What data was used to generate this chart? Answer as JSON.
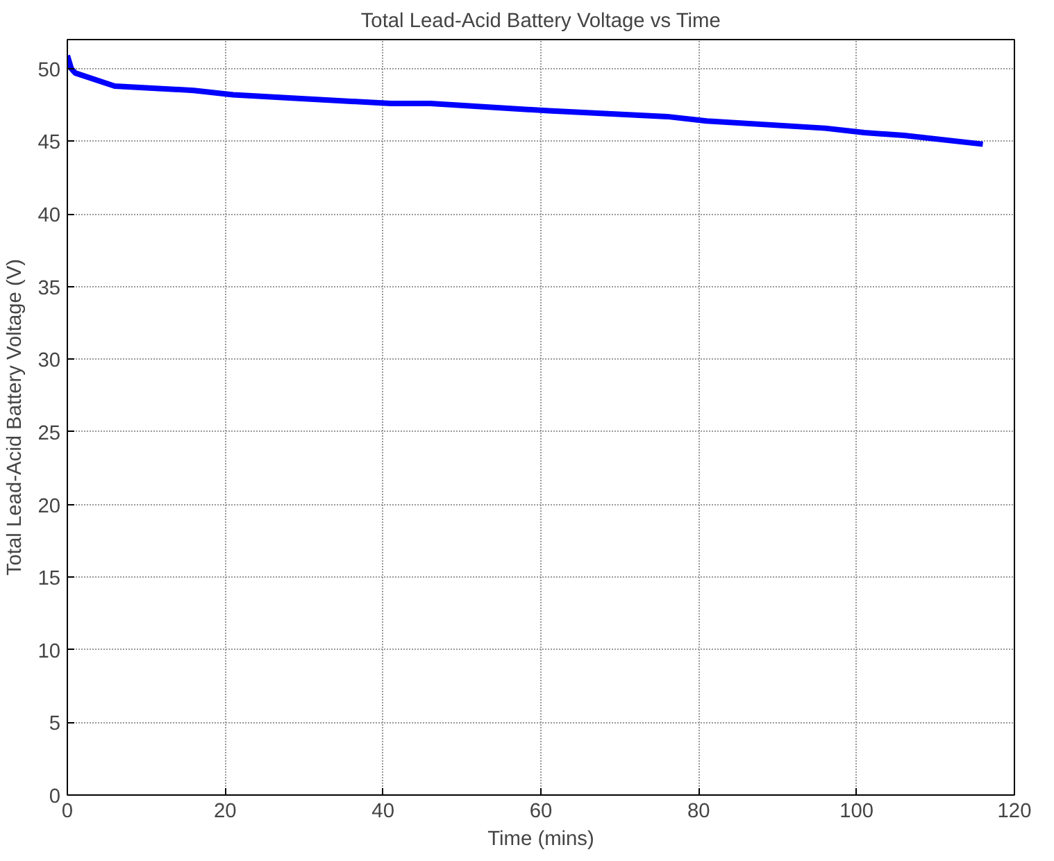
{
  "chart_data": {
    "type": "line",
    "title": "Total Lead-Acid Battery Voltage vs Time",
    "xlabel": "Time (mins)",
    "ylabel": "Total Lead-Acid Battery Voltage (V)",
    "x": [
      0,
      0.5,
      1,
      6,
      16,
      21,
      41,
      46,
      61,
      76,
      81,
      96,
      101,
      106,
      116
    ],
    "series": [
      {
        "color": "#0000ff",
        "values": [
          50.9,
          50.0,
          49.7,
          48.8,
          48.5,
          48.2,
          47.6,
          47.6,
          47.1,
          46.7,
          46.4,
          45.9,
          45.6,
          45.4,
          44.8
        ]
      }
    ],
    "xlim": [
      0,
      120
    ],
    "ylim": [
      0,
      52
    ],
    "xticks": [
      0,
      20,
      40,
      60,
      80,
      100,
      120
    ],
    "yticks": [
      0,
      5,
      10,
      15,
      20,
      25,
      30,
      35,
      40,
      45,
      50
    ],
    "grid": true,
    "line_style": "solid",
    "marker": "none"
  }
}
